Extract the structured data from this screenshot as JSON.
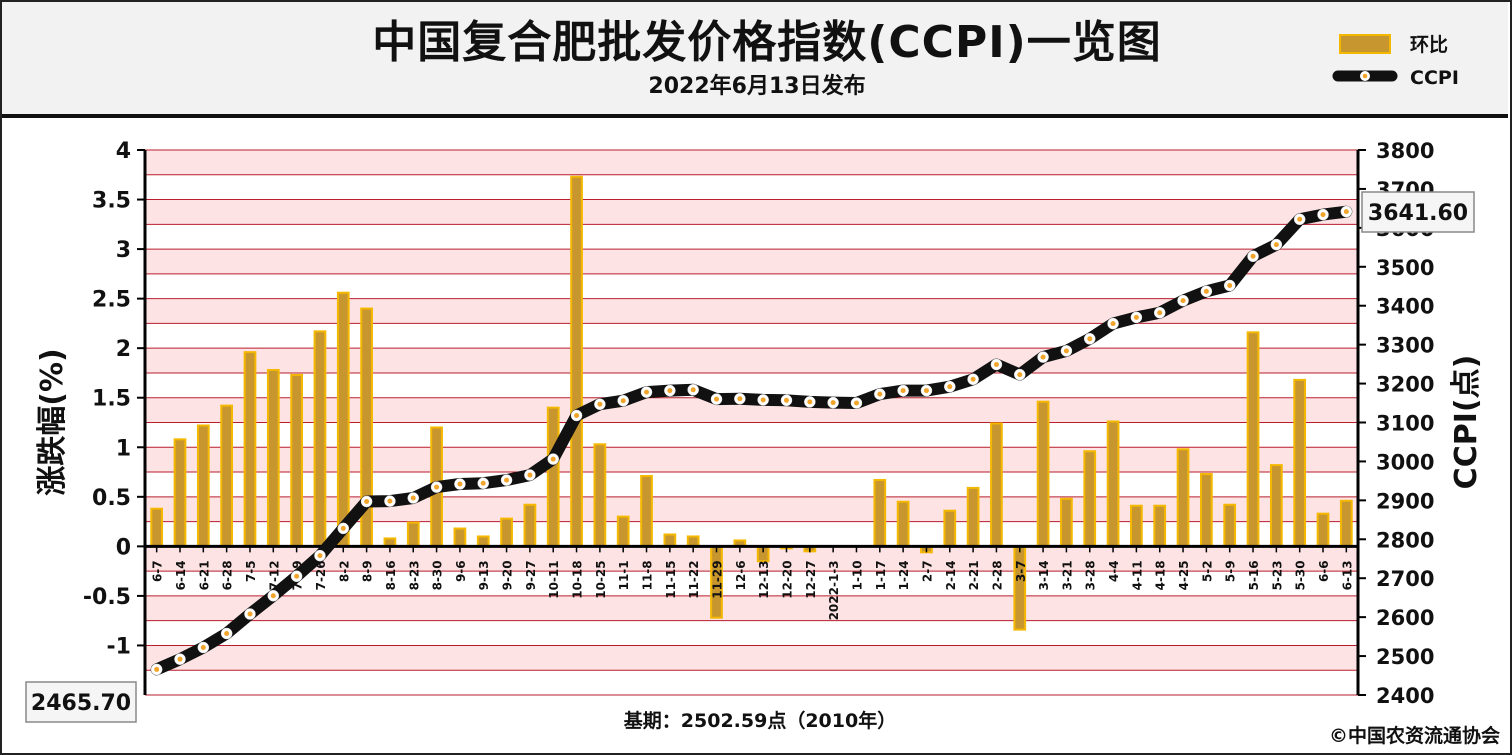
{
  "header": {
    "title": "中国复合肥批发价格指数(CCPI)一览图",
    "subtitle": "2022年6月13日发布"
  },
  "footer": {
    "base_period": "基期：2502.59点（2010年）",
    "copyright": "©中国农资流通协会"
  },
  "colors": {
    "bar_fill": "#c8962e",
    "bar_border": "#f5b800",
    "line": "#111111",
    "marker": "#f2a52a",
    "band_pink": "#fde3e3",
    "gridline": "#b81e2e"
  },
  "chart_data": {
    "type": "bar+line",
    "categories": [
      "6-7",
      "6-14",
      "6-21",
      "6-28",
      "7-5",
      "7-12",
      "7-19",
      "7-26",
      "8-2",
      "8-9",
      "8-16",
      "8-23",
      "8-30",
      "9-6",
      "9-13",
      "9-20",
      "9-27",
      "10-11",
      "10-18",
      "10-25",
      "11-1",
      "11-8",
      "11-15",
      "11-22",
      "11-29",
      "12-6",
      "12-13",
      "12-20",
      "12-27",
      "2022-1-3",
      "1-10",
      "1-17",
      "1-24",
      "2-7",
      "2-14",
      "2-21",
      "2-28",
      "3-7",
      "3-14",
      "3-21",
      "3-28",
      "4-4",
      "4-11",
      "4-18",
      "4-25",
      "5-2",
      "5-9",
      "5-16",
      "5-23",
      "5-30",
      "6-6",
      "6-13"
    ],
    "series": [
      {
        "name": "环比",
        "type": "bar",
        "axis": "left",
        "values": [
          0.38,
          1.08,
          1.22,
          1.42,
          1.96,
          1.78,
          1.73,
          2.17,
          2.56,
          2.4,
          0.08,
          0.24,
          1.2,
          0.18,
          0.1,
          0.28,
          0.42,
          1.4,
          3.73,
          1.03,
          0.3,
          0.71,
          0.12,
          0.1,
          -0.72,
          0.06,
          -0.15,
          -0.02,
          -0.05,
          0.0,
          0.0,
          0.67,
          0.45,
          -0.06,
          0.36,
          0.59,
          1.24,
          -0.84,
          1.46,
          0.48,
          0.96,
          1.26,
          0.41,
          0.41,
          0.98,
          0.73,
          0.42,
          2.16,
          0.82,
          1.68,
          0.33,
          0.46
        ]
      },
      {
        "name": "CCPI",
        "type": "line",
        "axis": "right",
        "values": [
          2465.7,
          2492,
          2522,
          2558,
          2608,
          2655,
          2705,
          2758,
          2828,
          2897,
          2898,
          2906,
          2934,
          2942,
          2944,
          2952,
          2965,
          3006,
          3118,
          3147,
          3156,
          3178,
          3182,
          3184,
          3160,
          3161,
          3158,
          3157,
          3153,
          3151,
          3150,
          3173,
          3182,
          3182,
          3192,
          3211,
          3249,
          3223,
          3268,
          3284,
          3315,
          3354,
          3370,
          3382,
          3413,
          3437,
          3452,
          3527,
          3557,
          3622,
          3634,
          3641.6
        ]
      }
    ],
    "ylabel": "涨跌幅(%)",
    "ylabel_right": "CCPI(点)",
    "ylim": [
      -1.5,
      4
    ],
    "ylim_right": [
      2400,
      3800
    ],
    "yticks": [
      "4",
      "3.5",
      "3",
      "2.5",
      "2",
      "1.5",
      "1",
      "0.5",
      "0",
      "-0.5",
      "-1"
    ],
    "yticks_right": [
      "3800",
      "3700",
      "3600",
      "3500",
      "3400",
      "3300",
      "3200",
      "3100",
      "3000",
      "2900",
      "2800",
      "2700",
      "2600",
      "2500",
      "2400"
    ],
    "start_label": "2465.70",
    "end_label": "3641.60",
    "legend_position": "top-right",
    "grid": true
  }
}
